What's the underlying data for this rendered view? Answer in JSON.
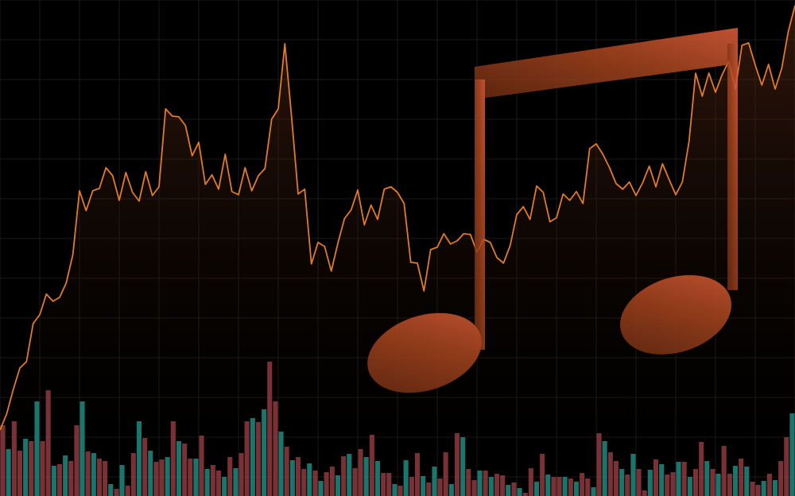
{
  "colors": {
    "background": "#000000",
    "grid": "#1d1a16",
    "price_line": "#e07b28",
    "area_fill_top": "#5a2a14",
    "volume_up": "#1e8a80",
    "volume_down": "#8e3a40",
    "note_light": "#e2603a",
    "note_dark": "#7a3418"
  },
  "chart_data": [
    {
      "type": "line",
      "series": [
        {
          "values": [
            541,
            521,
            490,
            463,
            455,
            407,
            396,
            370,
            379,
            374,
            356,
            320,
            240,
            265,
            240,
            237,
            211,
            221,
            252,
            217,
            242,
            253,
            216,
            246,
            235,
            137,
            146,
            147,
            158,
            196,
            179,
            232,
            220,
            238,
            194,
            241,
            245,
            211,
            240,
            221,
            212,
            150,
            137,
            55,
            146,
            244,
            238,
            332,
            305,
            310,
            341,
            306,
            275,
            264,
            239,
            283,
            258,
            276,
            238,
            235,
            242,
            256,
            330,
            331,
            366,
            314,
            311,
            294,
            307,
            303,
            294,
            295,
            317,
            301,
            305,
            324,
            331,
            309,
            270,
            260,
            276,
            234,
            242,
            279,
            274,
            244,
            252,
            241,
            256,
            187,
            181,
            194,
            211,
            231,
            238,
            229,
            246,
            230,
            209,
            235,
            206,
            226,
            245,
            229,
            178,
            92,
            121,
            92,
            116,
            94,
            77,
            112,
            57,
            54,
            82,
            107,
            81,
            112,
            86,
            39,
            7
          ]
        }
      ]
    },
    {
      "type": "bar",
      "series": [
        {
          "values": [
            535,
            565,
            530,
            567,
            552,
            555,
            505,
            555,
            491,
            586,
            584,
            573,
            580,
            535,
            505,
            568,
            570,
            577,
            580,
            609,
            615,
            585,
            611,
            570,
            530,
            551,
            567,
            581,
            578,
            575,
            530,
            555,
            558,
            577,
            577,
            548,
            590,
            585,
            592,
            600,
            575,
            589,
            570,
            530,
            526,
            531,
            515,
            455,
            505,
            543,
            562,
            579,
            575,
            590,
            583,
            592,
            605,
            594,
            587,
            598,
            574,
            571,
            589,
            565,
            575,
            547,
            580,
            595,
            595,
            609,
            611,
            579,
            600,
            570,
            599,
            607,
            587,
            602,
            569,
            609,
            545,
            550,
            590,
            604,
            592,
            592,
            600,
            596,
            598,
            610,
            607,
            614,
            620,
            589,
            606,
            571,
            597,
            600,
            600,
            600,
            602,
            606,
            595,
            602,
            613,
            545,
            555,
            569,
            580,
            590,
            597,
            571,
            590,
            617,
            591,
            578,
            584,
            597,
            594,
            581,
            581,
            600,
            590,
            556,
            580,
            590,
            596,
            561,
            596,
            586,
            577,
            587,
            606,
            610,
            605,
            596,
            604,
            580,
            550,
            520
          ]
        }
      ]
    }
  ]
}
